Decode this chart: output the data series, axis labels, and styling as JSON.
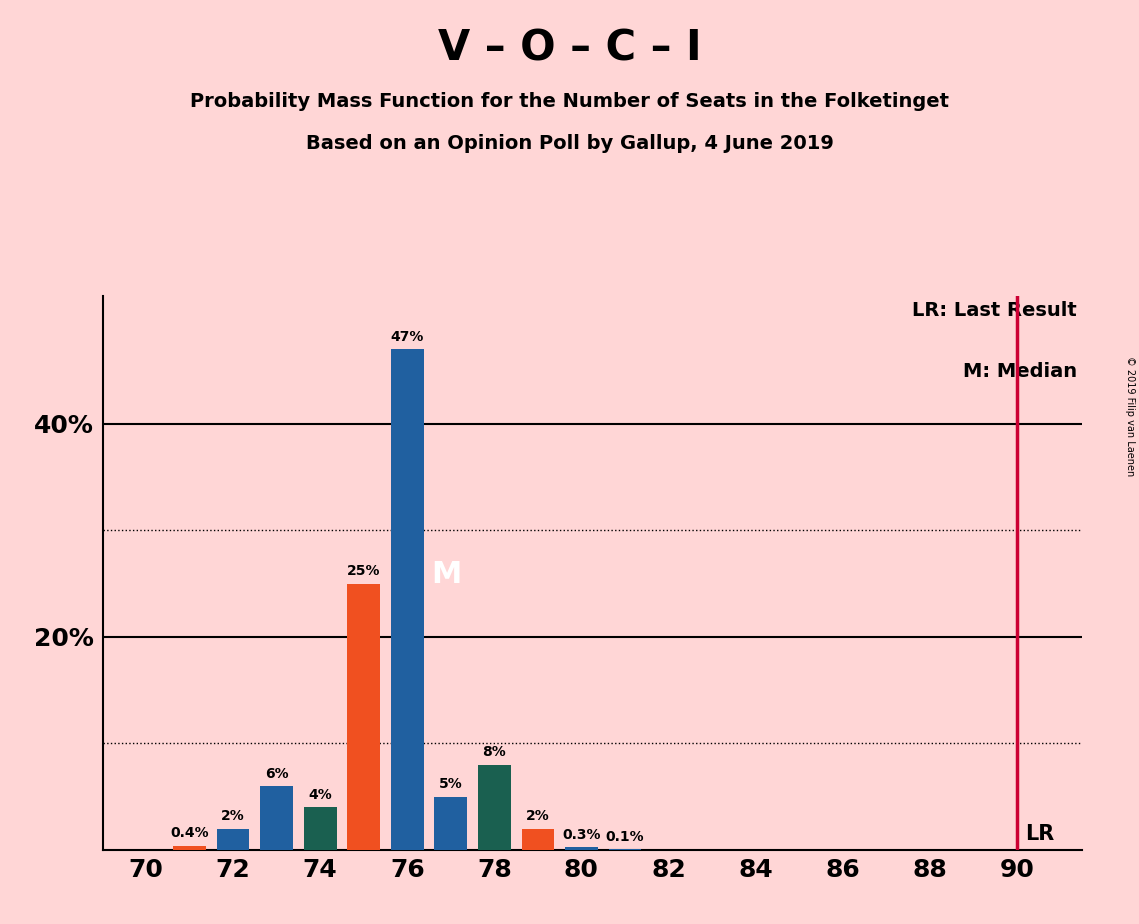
{
  "title_main": "V – O – C – I",
  "title_sub1": "Probability Mass Function for the Number of Seats in the Folketinget",
  "title_sub2": "Based on an Opinion Poll by Gallup, 4 June 2019",
  "copyright_text": "© 2019 Filip van Laenen",
  "background_color": "#ffd6d6",
  "seats": [
    70,
    71,
    72,
    73,
    74,
    75,
    76,
    77,
    78,
    79,
    80,
    81,
    82,
    83,
    84,
    85,
    86,
    87,
    88,
    89,
    90
  ],
  "probabilities": [
    0.0,
    0.4,
    2.0,
    6.0,
    4.0,
    25.0,
    47.0,
    5.0,
    8.0,
    2.0,
    0.3,
    0.1,
    0.0,
    0.0,
    0.0,
    0.0,
    0.0,
    0.0,
    0.0,
    0.0,
    0.0
  ],
  "bar_colors": [
    "#f05020",
    "#f05020",
    "#2060a0",
    "#2060a0",
    "#1a6050",
    "#f05020",
    "#2060a0",
    "#2060a0",
    "#1a6050",
    "#f05020",
    "#2060a0",
    "#2060a0",
    "#2060a0",
    "#2060a0",
    "#2060a0",
    "#2060a0",
    "#2060a0",
    "#2060a0",
    "#2060a0",
    "#2060a0",
    "#2060a0"
  ],
  "median_seat": 76,
  "median_label": "M",
  "lr_seat": 90,
  "lr_label": "LR",
  "lr_line_color": "#cc0033",
  "solid_hlines": [
    20,
    40
  ],
  "dotted_hlines": [
    10,
    30
  ],
  "ytick_positions": [
    20,
    40
  ],
  "ytick_labels": [
    "20%",
    "40%"
  ],
  "xtick_seats": [
    70,
    72,
    74,
    76,
    78,
    80,
    82,
    84,
    86,
    88,
    90
  ],
  "ylim": [
    0,
    52
  ],
  "xlim_left": 69.0,
  "xlim_right": 91.5,
  "legend_lr": "LR: Last Result",
  "legend_m": "M: Median",
  "bar_width": 0.75
}
